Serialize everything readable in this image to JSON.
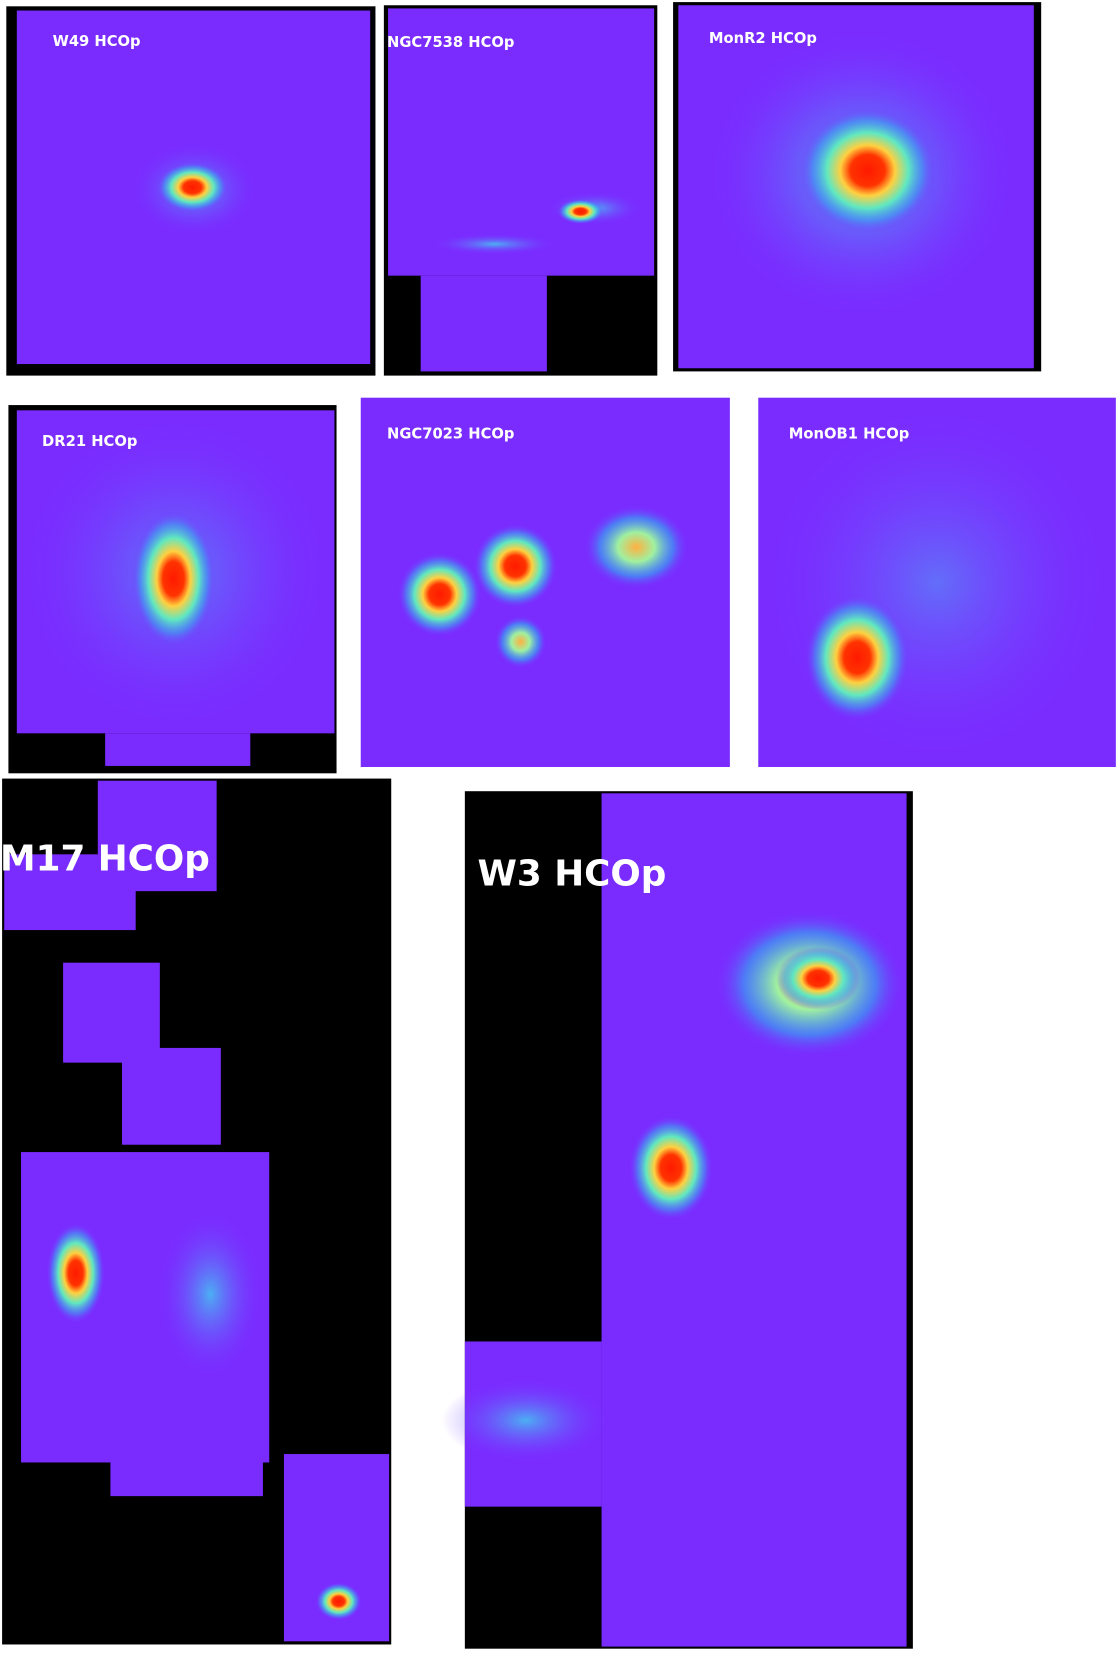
{
  "panels": [
    {
      "label": "W49 HCOp"
    },
    {
      "label": "NGC7538 HCOp"
    },
    {
      "label": "MonR2 HCOp"
    },
    {
      "label": "DR21 HCOp"
    },
    {
      "label": "NGC7023 HCOp"
    },
    {
      "label": "MonOB1 HCOp"
    },
    {
      "label": "M17 HCOp"
    },
    {
      "label": "W3 HCOp"
    }
  ]
}
